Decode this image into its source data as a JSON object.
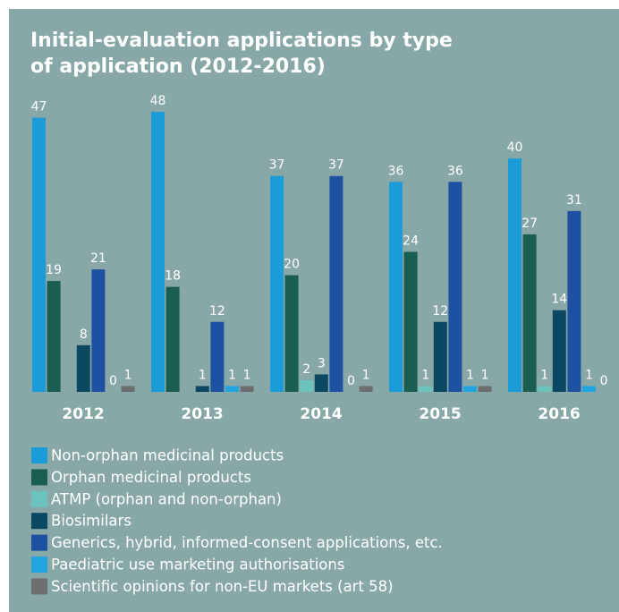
{
  "chart_data": {
    "type": "bar",
    "title": "Initial-evaluation applications by type of application (2012-2016)",
    "categories": [
      "2012",
      "2013",
      "2014",
      "2015",
      "2016"
    ],
    "series": [
      {
        "name": "Non-orphan medicinal products",
        "color": "#1b9bd7",
        "values": [
          47,
          48,
          37,
          36,
          40
        ]
      },
      {
        "name": "Orphan medicinal products",
        "color": "#1a5d51",
        "values": [
          19,
          18,
          20,
          24,
          27
        ]
      },
      {
        "name": "ATMP (orphan and non-orphan)",
        "color": "#6cc3be",
        "values": [
          null,
          null,
          2,
          1,
          1
        ]
      },
      {
        "name": "Biosimilars",
        "color": "#0c4862",
        "values": [
          8,
          1,
          3,
          12,
          14
        ]
      },
      {
        "name": "Generics, hybrid, informed-consent applications, etc.",
        "color": "#1f51a2",
        "values": [
          21,
          12,
          37,
          36,
          31
        ]
      },
      {
        "name": "Paediatric use marketing authorisations",
        "color": "#22a6df",
        "values": [
          0,
          1,
          0,
          1,
          1
        ]
      },
      {
        "name": "Scientific opinions for non-EU markets (art 58)",
        "color": "#6e6e6e",
        "values": [
          1,
          1,
          1,
          1,
          0
        ]
      }
    ],
    "ylim": [
      0,
      48
    ]
  }
}
